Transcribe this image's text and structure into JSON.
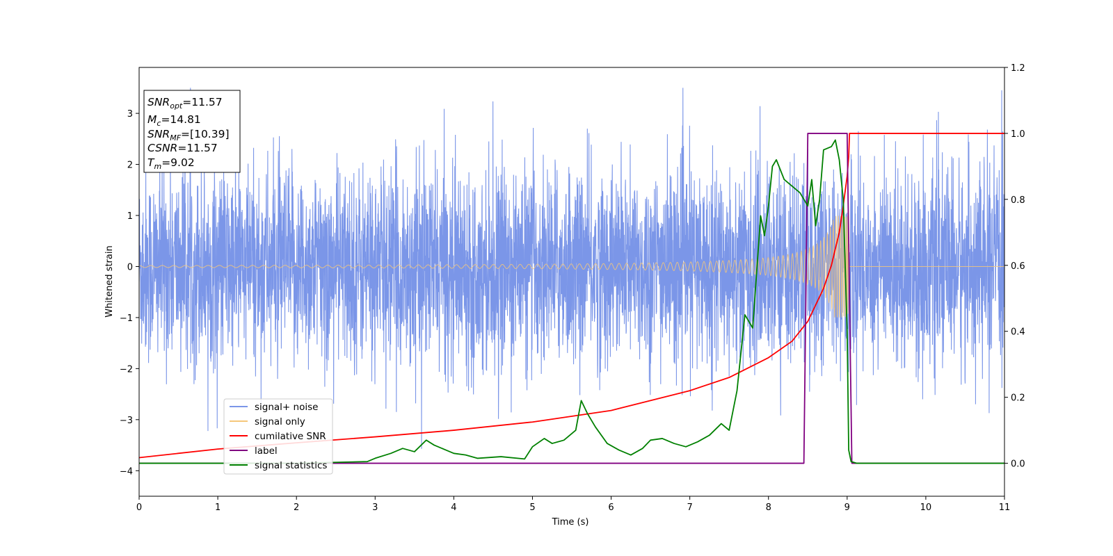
{
  "chart_data": {
    "type": "line",
    "xlabel": "Time (s)",
    "ylabel": "Whitened strain",
    "xlim": [
      0,
      11
    ],
    "ylim": [
      -4.5,
      3.9
    ],
    "ylim_right": [
      -0.1,
      1.2
    ],
    "x_ticks": [
      0,
      1,
      2,
      3,
      4,
      5,
      6,
      7,
      8,
      9,
      10,
      11
    ],
    "x_tick_labels": [
      "0",
      "1",
      "2",
      "3",
      "4",
      "5",
      "6",
      "7",
      "8",
      "9",
      "10",
      "11"
    ],
    "y_ticks": [
      3,
      2,
      1,
      0,
      -1,
      -2,
      -3,
      -4
    ],
    "y_tick_labels": [
      "3",
      "2",
      "1",
      "0",
      "−1",
      "−2",
      "−3",
      "−4"
    ],
    "y_right_ticks": [
      1.2,
      1.0,
      0.8,
      0.6,
      0.4,
      0.2,
      0.0
    ],
    "y_right_tick_labels": [
      "1.2",
      "1.0",
      "0.8",
      "0.6",
      "0.4",
      "0.2",
      "0.0"
    ],
    "grid": false,
    "legend_position": "lower-left",
    "info_box": {
      "snr_opt": {
        "base": "SNR",
        "sub": "opt",
        "value": "=11.57"
      },
      "mc": {
        "base": "M",
        "sub": "c",
        "value": "=14.81"
      },
      "snr_mf": {
        "base": "SNR",
        "sub": "MF",
        "value": "=[10.39]"
      },
      "csnr": {
        "base": "CSNR",
        "sub": "",
        "value": "=11.57"
      },
      "tm": {
        "base": "T",
        "sub": "m",
        "value": "=9.02"
      }
    },
    "series": [
      {
        "name": "signal+ noise",
        "axis": "left",
        "color": "#7b96e8",
        "description_values": "whitened noise, approx. std 0.95, spikes up to 3.5 and down to -4.2"
      },
      {
        "name": "signal only",
        "axis": "left",
        "color": "#f5c77a",
        "chirp": {
          "start_amplitude": 0.02,
          "peak_amplitude": 1.0,
          "merger_time": 9.02
        }
      },
      {
        "name": "cumilative SNR",
        "axis": "right",
        "color": "#ff0000",
        "x": [
          0,
          1,
          2,
          3,
          4,
          5,
          6,
          7,
          7.5,
          8,
          8.3,
          8.5,
          8.7,
          8.8,
          8.9,
          8.95,
          9.0,
          9.02,
          9.03,
          11
        ],
        "y": [
          0.017,
          0.043,
          0.062,
          0.08,
          0.1,
          0.125,
          0.16,
          0.22,
          0.26,
          0.32,
          0.37,
          0.43,
          0.53,
          0.6,
          0.7,
          0.78,
          0.87,
          0.93,
          1.0,
          1.0
        ]
      },
      {
        "name": "label",
        "axis": "right",
        "color": "#800080",
        "x": [
          0,
          8.45,
          8.5,
          9.0,
          9.06,
          11
        ],
        "y": [
          0,
          0,
          1,
          1,
          0,
          0
        ]
      },
      {
        "name": "signal statistics",
        "axis": "right",
        "color": "#008000",
        "x": [
          0,
          1,
          2,
          2.9,
          3.0,
          3.2,
          3.35,
          3.5,
          3.65,
          3.75,
          3.9,
          4.0,
          4.15,
          4.3,
          4.6,
          4.9,
          5.0,
          5.15,
          5.25,
          5.4,
          5.55,
          5.62,
          5.7,
          5.8,
          5.95,
          6.1,
          6.25,
          6.4,
          6.5,
          6.65,
          6.8,
          6.95,
          7.1,
          7.25,
          7.4,
          7.5,
          7.6,
          7.7,
          7.8,
          7.9,
          7.95,
          8.0,
          8.05,
          8.1,
          8.2,
          8.3,
          8.4,
          8.5,
          8.55,
          8.6,
          8.65,
          8.7,
          8.8,
          8.85,
          8.9,
          8.95,
          9.0,
          9.02,
          9.05,
          9.12,
          11
        ],
        "y": [
          0,
          0,
          0,
          0.005,
          0.015,
          0.03,
          0.045,
          0.035,
          0.07,
          0.055,
          0.04,
          0.03,
          0.025,
          0.015,
          0.02,
          0.013,
          0.05,
          0.075,
          0.06,
          0.07,
          0.1,
          0.19,
          0.15,
          0.11,
          0.06,
          0.04,
          0.025,
          0.045,
          0.07,
          0.075,
          0.06,
          0.05,
          0.065,
          0.085,
          0.12,
          0.1,
          0.22,
          0.45,
          0.41,
          0.75,
          0.69,
          0.78,
          0.9,
          0.92,
          0.86,
          0.84,
          0.82,
          0.78,
          0.86,
          0.72,
          0.8,
          0.95,
          0.96,
          0.98,
          0.92,
          0.8,
          0.4,
          0.04,
          0.005,
          0.0,
          0.0
        ]
      }
    ]
  }
}
